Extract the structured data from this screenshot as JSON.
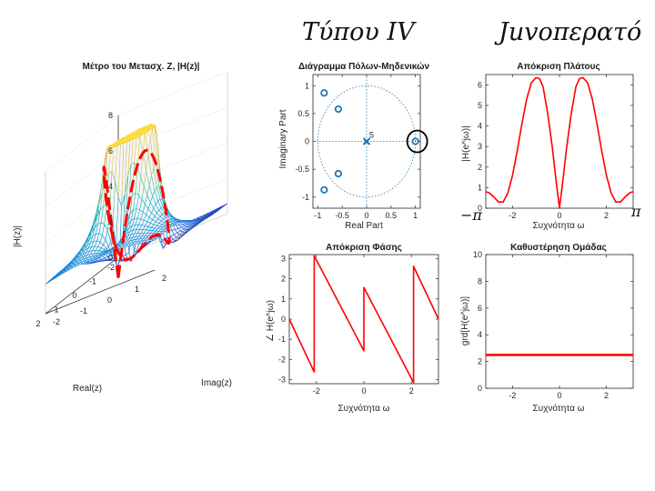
{
  "handwriting": {
    "title_left": "Τύπου IV",
    "title_right": "Juvoπερατό",
    "neg_pi": "−π",
    "pi": "π"
  },
  "chart_data": [
    {
      "id": "surface3d",
      "type": "surface",
      "title": "Μέτρο του Μετασχ. Ζ, |H(z)|",
      "xlabel": "Real(z)",
      "ylabel": "Imag(z)",
      "zlabel": "|H(z)|",
      "xlim": [
        -2,
        2
      ],
      "ylim": [
        -2,
        2
      ],
      "zlim": [
        0,
        8
      ],
      "xticks": [
        "-2",
        "-1",
        "0",
        "1",
        "2"
      ],
      "yticks": [
        "-2",
        "-1",
        "0",
        "1",
        "2"
      ],
      "zticks": [
        "0",
        "2",
        "4",
        "6",
        "8"
      ],
      "colormap": "parula",
      "unit_circle_color": "#ff0000"
    },
    {
      "id": "polezero",
      "type": "scatter",
      "title": "Διάγραμμα Πόλων-Μηδενικών",
      "xlabel": "Real Part",
      "ylabel": "Imaginary Part",
      "xlim": [
        -1.1,
        1.1
      ],
      "ylim": [
        -1.2,
        1.2
      ],
      "xticks": [
        -1,
        -0.5,
        0,
        0.5,
        1
      ],
      "xtick_labels": [
        "-1",
        "-0.5",
        "0",
        "0.5",
        "1"
      ],
      "yticks": [
        -1,
        -0.5,
        0,
        0.5,
        1
      ],
      "ytick_labels": [
        "-1",
        "-0.5",
        "0",
        "0.5",
        "1"
      ],
      "zeros": [
        [
          -0.87,
          0.87
        ],
        [
          -0.58,
          0.58
        ],
        [
          -0.58,
          -0.58
        ],
        [
          -0.87,
          -0.87
        ],
        [
          1.0,
          0.0
        ]
      ],
      "poles": [
        [
          0.0,
          0.0
        ]
      ],
      "pole_multiplicity": "5",
      "unit_circle": true,
      "highlight_circle_around": [
        1.0,
        0.0
      ]
    },
    {
      "id": "magnitude",
      "type": "line",
      "title": "Απόκριση Πλάτους",
      "xlabel": "Συχνότητα ω",
      "ylabel": "|H(e^jω)|",
      "xlim": [
        -3.14159,
        3.14159
      ],
      "ylim": [
        0,
        6.5
      ],
      "xticks": [
        -2,
        0,
        2
      ],
      "xtick_labels": [
        "-2",
        "0",
        "2"
      ],
      "yticks": [
        0,
        1,
        2,
        3,
        4,
        5,
        6
      ],
      "ytick_labels": [
        "0",
        "1",
        "2",
        "3",
        "4",
        "5",
        "6"
      ],
      "series": [
        {
          "color": "#ff0000",
          "x": [
            -3.14,
            -3.0,
            -2.8,
            -2.6,
            -2.4,
            -2.2,
            -2.0,
            -1.8,
            -1.6,
            -1.4,
            -1.2,
            -1.0,
            -0.85,
            -0.7,
            -0.5,
            -0.3,
            -0.15,
            0.0,
            0.15,
            0.3,
            0.5,
            0.7,
            0.85,
            1.0,
            1.2,
            1.4,
            1.6,
            1.8,
            2.0,
            2.2,
            2.4,
            2.6,
            2.8,
            3.0,
            3.14
          ],
          "y": [
            0.8,
            0.75,
            0.55,
            0.3,
            0.3,
            0.75,
            1.6,
            2.8,
            4.1,
            5.3,
            6.1,
            6.35,
            6.3,
            5.9,
            4.6,
            2.9,
            1.4,
            0.0,
            1.4,
            2.9,
            4.6,
            5.9,
            6.3,
            6.35,
            6.1,
            5.3,
            4.1,
            2.8,
            1.6,
            0.75,
            0.3,
            0.3,
            0.55,
            0.75,
            0.8
          ]
        }
      ]
    },
    {
      "id": "phase",
      "type": "line",
      "title": "Απόκριση Φάσης",
      "xlabel": "Συχνότητα ω",
      "ylabel": "∠ H(e^jω)",
      "xlim": [
        -3.14159,
        3.14159
      ],
      "ylim": [
        -3.2,
        3.2
      ],
      "xticks": [
        -2,
        0,
        2
      ],
      "xtick_labels": [
        "-2",
        "0",
        "2"
      ],
      "yticks": [
        -3,
        -2,
        -1,
        0,
        1,
        2,
        3
      ],
      "ytick_labels": [
        "-3",
        "-2",
        "-1",
        "0",
        "1",
        "2",
        "3"
      ],
      "series": [
        {
          "color": "#ff0000",
          "x": [
            -3.14,
            -2.09,
            -2.09,
            0.0,
            0.0,
            2.09,
            2.09,
            3.14
          ],
          "y": [
            0.0,
            -2.62,
            3.14,
            -1.57,
            1.57,
            -3.14,
            2.62,
            0.0
          ]
        }
      ]
    },
    {
      "id": "groupdelay",
      "type": "line",
      "title": "Καθυστέρηση Ομάδας",
      "xlabel": "Συχνότητα ω",
      "ylabel": "grd[H(e^jω)]",
      "xlim": [
        -3.14159,
        3.14159
      ],
      "ylim": [
        0,
        10
      ],
      "xticks": [
        -2,
        0,
        2
      ],
      "xtick_labels": [
        "-2",
        "0",
        "2"
      ],
      "yticks": [
        0,
        2,
        4,
        6,
        8,
        10
      ],
      "ytick_labels": [
        "0",
        "2",
        "4",
        "6",
        "8",
        "10"
      ],
      "series": [
        {
          "color": "#ff0000",
          "x": [
            -3.14,
            3.14
          ],
          "y": [
            2.5,
            2.5
          ]
        }
      ]
    }
  ]
}
